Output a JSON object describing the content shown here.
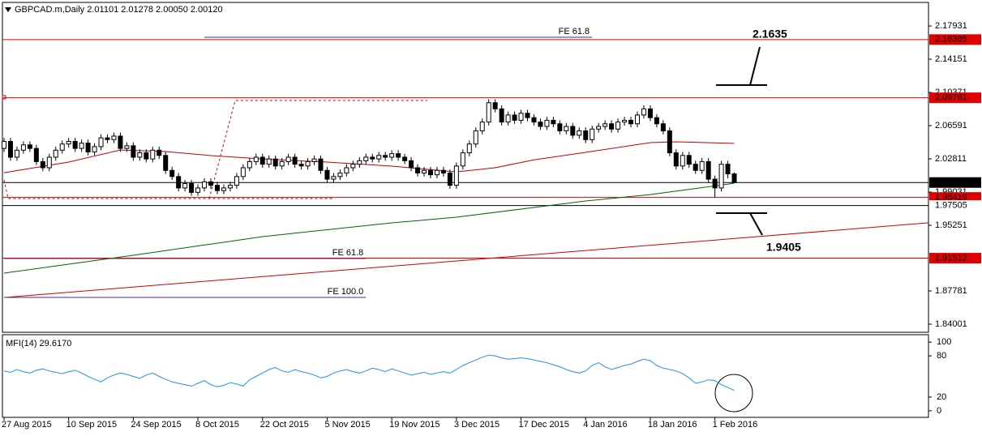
{
  "chart_data": {
    "type": "candlestick",
    "title": "GBPCAD.m,Daily  2.01101 2.01278 2.00050 2.00120",
    "categories": [
      "27 Aug 2015",
      null,
      null,
      null,
      null,
      null,
      null,
      null,
      null,
      null,
      "10 Sep 2015",
      null,
      null,
      null,
      null,
      null,
      null,
      null,
      null,
      null,
      "24 Sep 2015",
      null,
      null,
      null,
      null,
      null,
      null,
      null,
      null,
      null,
      "8 Oct 2015",
      null,
      null,
      null,
      null,
      null,
      null,
      null,
      null,
      null,
      "22 Oct 2015",
      null,
      null,
      null,
      null,
      null,
      null,
      null,
      null,
      null,
      "5 Nov 2015",
      null,
      null,
      null,
      null,
      null,
      null,
      null,
      null,
      null,
      "19 Nov 2015",
      null,
      null,
      null,
      null,
      null,
      null,
      null,
      null,
      null,
      "3 Dec 2015",
      null,
      null,
      null,
      null,
      null,
      null,
      null,
      null,
      null,
      "17 Dec 2015",
      null,
      null,
      null,
      null,
      null,
      null,
      null,
      null,
      null,
      "4 Jan 2016",
      null,
      null,
      null,
      null,
      null,
      null,
      null,
      null,
      null,
      "18 Jan 2016",
      null,
      null,
      null,
      null,
      null,
      null,
      null,
      null,
      null,
      "1 Feb 2016",
      null,
      null,
      null
    ],
    "ohlc": [
      [
        2.04,
        2.052,
        2.036,
        2.048
      ],
      [
        2.048,
        2.052,
        2.026,
        2.03
      ],
      [
        2.03,
        2.042,
        2.026,
        2.038
      ],
      [
        2.038,
        2.048,
        2.034,
        2.044
      ],
      [
        2.044,
        2.048,
        2.036,
        2.04
      ],
      [
        2.04,
        2.044,
        2.021,
        2.025
      ],
      [
        2.025,
        2.029,
        2.014,
        2.018
      ],
      [
        2.018,
        2.034,
        2.014,
        2.03
      ],
      [
        2.03,
        2.042,
        2.026,
        2.038
      ],
      [
        2.038,
        2.049,
        2.034,
        2.045
      ],
      [
        2.045,
        2.052,
        2.041,
        2.048
      ],
      [
        2.048,
        2.052,
        2.036,
        2.04
      ],
      [
        2.04,
        2.05,
        2.036,
        2.046
      ],
      [
        2.046,
        2.05,
        2.032,
        2.036
      ],
      [
        2.036,
        2.046,
        2.032,
        2.042
      ],
      [
        2.042,
        2.056,
        2.038,
        2.052
      ],
      [
        2.052,
        2.056,
        2.046,
        2.05
      ],
      [
        2.05,
        2.058,
        2.046,
        2.054
      ],
      [
        2.054,
        2.058,
        2.036,
        2.04
      ],
      [
        2.04,
        2.047,
        2.036,
        2.043
      ],
      [
        2.043,
        2.047,
        2.026,
        2.03
      ],
      [
        2.03,
        2.039,
        2.026,
        2.035
      ],
      [
        2.035,
        2.039,
        2.024,
        2.028
      ],
      [
        2.028,
        2.042,
        2.024,
        2.038
      ],
      [
        2.038,
        2.042,
        2.028,
        2.032
      ],
      [
        2.032,
        2.036,
        2.011,
        2.015
      ],
      [
        2.015,
        2.019,
        2.004,
        2.008
      ],
      [
        2.008,
        2.012,
        1.991,
        1.995
      ],
      [
        1.995,
        2.004,
        1.991,
        2.0
      ],
      [
        2.0,
        2.004,
        1.986,
        1.99
      ],
      [
        1.99,
        1.999,
        1.986,
        1.995
      ],
      [
        1.995,
        2.006,
        1.991,
        2.002
      ],
      [
        2.002,
        2.006,
        1.994,
        1.998
      ],
      [
        1.998,
        2.002,
        1.988,
        1.992
      ],
      [
        1.992,
        1.999,
        1.988,
        1.995
      ],
      [
        1.995,
        2.002,
        1.991,
        1.998
      ],
      [
        1.998,
        2.012,
        1.994,
        2.008
      ],
      [
        2.008,
        2.022,
        2.004,
        2.018
      ],
      [
        2.018,
        2.029,
        2.014,
        2.025
      ],
      [
        2.025,
        2.034,
        2.021,
        2.03
      ],
      [
        2.03,
        2.034,
        2.018,
        2.022
      ],
      [
        2.022,
        2.032,
        2.018,
        2.028
      ],
      [
        2.028,
        2.032,
        2.016,
        2.02
      ],
      [
        2.02,
        2.029,
        2.016,
        2.025
      ],
      [
        2.025,
        2.034,
        2.021,
        2.03
      ],
      [
        2.03,
        2.034,
        2.018,
        2.022
      ],
      [
        2.022,
        2.026,
        2.016,
        2.02
      ],
      [
        2.02,
        2.029,
        2.016,
        2.025
      ],
      [
        2.025,
        2.032,
        2.021,
        2.028
      ],
      [
        2.028,
        2.032,
        2.011,
        2.015
      ],
      [
        2.015,
        2.019,
        2.001,
        2.005
      ],
      [
        2.005,
        2.012,
        2.001,
        2.008
      ],
      [
        2.008,
        2.016,
        2.004,
        2.012
      ],
      [
        2.012,
        2.022,
        2.008,
        2.018
      ],
      [
        2.018,
        2.026,
        2.014,
        2.022
      ],
      [
        2.022,
        2.03,
        2.018,
        2.026
      ],
      [
        2.026,
        2.034,
        2.022,
        2.03
      ],
      [
        2.03,
        2.034,
        2.024,
        2.028
      ],
      [
        2.028,
        2.036,
        2.024,
        2.032
      ],
      [
        2.032,
        2.036,
        2.026,
        2.03
      ],
      [
        2.03,
        2.038,
        2.026,
        2.034
      ],
      [
        2.034,
        2.038,
        2.026,
        2.03
      ],
      [
        2.03,
        2.034,
        2.022,
        2.026
      ],
      [
        2.026,
        2.03,
        2.014,
        2.018
      ],
      [
        2.018,
        2.022,
        2.008,
        2.012
      ],
      [
        2.012,
        2.019,
        2.008,
        2.015
      ],
      [
        2.015,
        2.019,
        2.006,
        2.01
      ],
      [
        2.01,
        2.019,
        2.006,
        2.015
      ],
      [
        2.015,
        2.019,
        2.008,
        2.012
      ],
      [
        2.012,
        2.016,
        1.994,
        1.998
      ],
      [
        1.998,
        2.024,
        1.994,
        2.02
      ],
      [
        2.02,
        2.039,
        2.016,
        2.035
      ],
      [
        2.035,
        2.049,
        2.031,
        2.045
      ],
      [
        2.045,
        2.064,
        2.041,
        2.06
      ],
      [
        2.06,
        2.074,
        2.056,
        2.07
      ],
      [
        2.07,
        2.096,
        2.066,
        2.092
      ],
      [
        2.092,
        2.096,
        2.081,
        2.085
      ],
      [
        2.085,
        2.089,
        2.066,
        2.07
      ],
      [
        2.07,
        2.082,
        2.066,
        2.078
      ],
      [
        2.078,
        2.082,
        2.068,
        2.072
      ],
      [
        2.072,
        2.084,
        2.068,
        2.08
      ],
      [
        2.08,
        2.084,
        2.071,
        2.075
      ],
      [
        2.075,
        2.079,
        2.066,
        2.07
      ],
      [
        2.07,
        2.074,
        2.061,
        2.065
      ],
      [
        2.065,
        2.076,
        2.061,
        2.072
      ],
      [
        2.072,
        2.076,
        2.064,
        2.068
      ],
      [
        2.068,
        2.072,
        2.056,
        2.06
      ],
      [
        2.06,
        2.069,
        2.056,
        2.065
      ],
      [
        2.065,
        2.069,
        2.051,
        2.055
      ],
      [
        2.055,
        2.064,
        2.051,
        2.06
      ],
      [
        2.06,
        2.064,
        2.046,
        2.05
      ],
      [
        2.05,
        2.066,
        2.046,
        2.062
      ],
      [
        2.062,
        2.069,
        2.058,
        2.065
      ],
      [
        2.065,
        2.072,
        2.061,
        2.068
      ],
      [
        2.068,
        2.072,
        2.058,
        2.062
      ],
      [
        2.062,
        2.074,
        2.058,
        2.07
      ],
      [
        2.07,
        2.076,
        2.066,
        2.072
      ],
      [
        2.072,
        2.076,
        2.064,
        2.068
      ],
      [
        2.068,
        2.082,
        2.064,
        2.078
      ],
      [
        2.078,
        2.089,
        2.074,
        2.085
      ],
      [
        2.085,
        2.089,
        2.071,
        2.075
      ],
      [
        2.075,
        2.079,
        2.064,
        2.068
      ],
      [
        2.068,
        2.072,
        2.056,
        2.06
      ],
      [
        2.06,
        2.064,
        2.031,
        2.035
      ],
      [
        2.035,
        2.039,
        2.016,
        2.02
      ],
      [
        2.02,
        2.036,
        2.016,
        2.032
      ],
      [
        2.032,
        2.036,
        2.018,
        2.022
      ],
      [
        2.022,
        2.026,
        2.011,
        2.015
      ],
      [
        2.015,
        2.029,
        2.011,
        2.025
      ],
      [
        2.025,
        2.029,
        2.001,
        2.005
      ],
      [
        2.005,
        2.009,
        1.984,
        1.995
      ],
      [
        1.995,
        2.026,
        1.991,
        2.022
      ],
      [
        2.022,
        2.026,
        2.006,
        2.011
      ],
      [
        2.01101,
        2.01278,
        2.0005,
        2.0012
      ]
    ],
    "xlim": [
      -0.25,
      143.05
    ],
    "ylim": [
      1.8308,
      2.2061
    ],
    "yticks": [
      2.17931,
      2.14151,
      2.10371,
      2.06591,
      2.02811,
      1.99031,
      1.95251,
      1.87781,
      1.84001
    ],
    "up_color": "#ffffff",
    "down_color": "#000000",
    "moving_averages": [
      {
        "color": "#c00000",
        "x": [
          0,
          10,
          18,
          25,
          32,
          40,
          50,
          60,
          70,
          76,
          82,
          90,
          100,
          104,
          113
        ],
        "values": [
          2.0124,
          2.0244,
          2.0382,
          2.0364,
          2.0318,
          2.028,
          2.0244,
          2.0198,
          2.0133,
          2.018,
          2.027,
          2.0355,
          2.0466,
          2.0475,
          2.0457
        ]
      },
      {
        "color": "#006400",
        "x": [
          0,
          20,
          40,
          60,
          70,
          80,
          90,
          100,
          113
        ],
        "values": [
          1.8981,
          1.9184,
          1.9396,
          1.9553,
          1.9617,
          1.971,
          1.9802,
          1.9875,
          2.0004
        ]
      }
    ],
    "trendline": {
      "color": "#d00000",
      "x": [
        0,
        143
      ],
      "values": [
        1.8704,
        1.9553
      ]
    },
    "levels": [
      {
        "value": 2.16385,
        "color": "#e00000",
        "text_color": "#ffffff"
      },
      {
        "value": 2.09761,
        "color": "#e00000",
        "text_color": "#ffffff"
      },
      {
        "value": 2.0012,
        "label": "2.00120",
        "color": "#000000",
        "text_color": "#ffffff"
      },
      {
        "value": 1.98419,
        "color": "#e00000",
        "text_color": "#ffffff"
      },
      {
        "value": 1.97505,
        "color": "#000000",
        "text_color": "#000000"
      },
      {
        "value": 1.91512,
        "color": "#e00000",
        "text_color": "#ffffff"
      }
    ],
    "fibo": [
      {
        "label": "FE 61.8",
        "x": [
          31,
          91
        ],
        "value": 2.1664
      },
      {
        "label": "FE 61.8",
        "x": [
          0,
          56
        ],
        "value": 1.9147
      },
      {
        "label": "FE 100.0",
        "x": [
          0,
          56
        ],
        "value": 1.8704
      }
    ],
    "fibo_color": "#4b2a8c",
    "annotations": [
      "2.1635",
      "1.9405"
    ],
    "indicator": {
      "title": "MFI(14) 29.6170",
      "color": "#1e90ff",
      "ylim": [
        -9.6,
        110.8
      ],
      "yticks": [
        100,
        80,
        20,
        0
      ],
      "values": [
        58,
        56,
        60,
        57,
        55,
        59,
        61,
        58,
        56,
        54,
        57,
        59,
        55,
        50,
        46,
        42,
        48,
        52,
        55,
        53,
        50,
        47,
        52,
        55,
        50,
        46,
        42,
        40,
        38,
        36,
        40,
        44,
        38,
        35,
        37,
        41,
        39,
        36,
        45,
        50,
        55,
        60,
        63,
        58,
        56,
        60,
        57,
        55,
        52,
        48,
        50,
        55,
        58,
        60,
        57,
        55,
        58,
        62,
        60,
        57,
        61,
        58,
        55,
        52,
        54,
        56,
        53,
        55,
        57,
        55,
        60,
        66,
        70,
        74,
        78,
        81,
        80,
        77,
        75,
        76,
        77,
        76,
        74,
        72,
        70,
        67,
        64,
        60,
        57,
        55,
        58,
        66,
        70,
        64,
        60,
        63,
        66,
        68,
        72,
        75,
        73,
        66,
        62,
        60,
        58,
        54,
        48,
        40,
        42,
        45,
        44,
        38,
        34,
        29.617
      ]
    }
  }
}
